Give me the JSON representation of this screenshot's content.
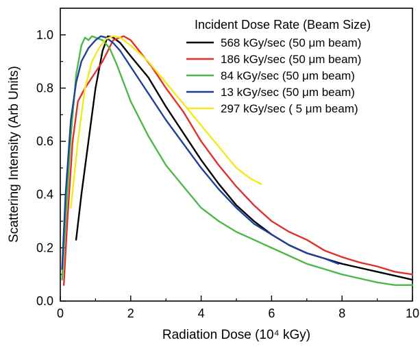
{
  "chart_data": {
    "type": "line",
    "title": "",
    "xlabel": "Radiation Dose (10⁴ kGy)",
    "ylabel": "Scattering Intensity (Arb Units)",
    "xlim": [
      0,
      10
    ],
    "ylim": [
      0,
      1.1
    ],
    "x_ticks": [
      "0",
      "2",
      "4",
      "6",
      "8",
      "10"
    ],
    "y_ticks": [
      "0.0",
      "0.2",
      "0.4",
      "0.6",
      "0.8",
      "1.0"
    ],
    "grid": false,
    "legend_position": "top-right",
    "legend_title": "Incident Dose Rate (Beam Size)",
    "series": [
      {
        "name": "568 kGy/sec (50 μm beam)",
        "color": "#000000",
        "x": [
          0.45,
          0.6,
          0.8,
          1.0,
          1.2,
          1.35,
          1.5,
          1.7,
          2.0,
          2.5,
          3.0,
          3.5,
          4.0,
          4.5,
          5.0,
          5.5,
          6.0,
          6.5,
          7.0,
          7.5,
          8.0,
          8.5,
          9.0,
          9.5,
          10.0
        ],
        "y": [
          0.23,
          0.4,
          0.6,
          0.8,
          0.94,
          0.995,
          0.99,
          0.97,
          0.92,
          0.84,
          0.73,
          0.63,
          0.53,
          0.44,
          0.36,
          0.3,
          0.25,
          0.21,
          0.18,
          0.16,
          0.14,
          0.125,
          0.11,
          0.095,
          0.08
        ]
      },
      {
        "name": "186 kGy/sec (50 μm beam)",
        "color": "#e0302b",
        "x": [
          0.1,
          0.2,
          0.35,
          0.5,
          0.7,
          0.9,
          1.2,
          1.5,
          1.8,
          2.0,
          2.3,
          2.6,
          3.0,
          3.5,
          4.0,
          4.5,
          5.0,
          5.5,
          6.0,
          6.5,
          7.0,
          7.5,
          8.0,
          8.5,
          9.0,
          9.5,
          10.0
        ],
        "y": [
          0.06,
          0.3,
          0.6,
          0.75,
          0.8,
          0.84,
          0.9,
          0.98,
          0.995,
          0.98,
          0.93,
          0.88,
          0.8,
          0.71,
          0.6,
          0.51,
          0.43,
          0.36,
          0.3,
          0.26,
          0.23,
          0.19,
          0.165,
          0.145,
          0.13,
          0.11,
          0.1
        ]
      },
      {
        "name": "84 kGy/sec (50 μm beam)",
        "color": "#4cb848",
        "x": [
          0.05,
          0.15,
          0.3,
          0.45,
          0.6,
          0.7,
          0.8,
          0.9,
          1.0,
          1.2,
          1.4,
          1.6,
          1.8,
          2.0,
          2.5,
          3.0,
          3.5,
          4.0,
          4.5,
          5.0,
          5.5,
          6.0,
          6.5,
          7.0,
          7.5,
          8.0,
          8.5,
          9.0,
          9.5,
          10.0
        ],
        "y": [
          0.08,
          0.3,
          0.62,
          0.85,
          0.96,
          0.99,
          0.98,
          0.995,
          0.99,
          0.98,
          0.95,
          0.89,
          0.82,
          0.75,
          0.62,
          0.51,
          0.43,
          0.35,
          0.3,
          0.26,
          0.23,
          0.2,
          0.17,
          0.14,
          0.12,
          0.1,
          0.085,
          0.07,
          0.06,
          0.06
        ]
      },
      {
        "name": "13 kGy/sec (50 μm beam)",
        "color": "#1f3f99",
        "x": [
          0.05,
          0.15,
          0.3,
          0.45,
          0.6,
          0.8,
          1.0,
          1.15,
          1.3,
          1.5,
          1.7,
          2.0,
          2.5,
          3.0,
          3.5,
          4.0,
          4.5,
          5.0,
          5.5,
          6.0,
          6.5,
          7.0,
          7.5,
          7.9
        ],
        "y": [
          0.12,
          0.4,
          0.68,
          0.82,
          0.9,
          0.95,
          0.98,
          0.995,
          0.99,
          0.97,
          0.94,
          0.88,
          0.78,
          0.68,
          0.59,
          0.5,
          0.42,
          0.35,
          0.29,
          0.25,
          0.21,
          0.18,
          0.16,
          0.14
        ]
      },
      {
        "name": "297 kGy/sec ( 5 μm beam)",
        "color": "#f2ea1e",
        "x": [
          0.3,
          0.5,
          0.7,
          0.9,
          1.1,
          1.3,
          1.5,
          1.7,
          2.0,
          2.5,
          3.0,
          3.5,
          4.0,
          4.5,
          5.0,
          5.4,
          5.7
        ],
        "y": [
          0.35,
          0.6,
          0.8,
          0.9,
          0.95,
          0.985,
          0.995,
          0.99,
          0.96,
          0.9,
          0.82,
          0.74,
          0.66,
          0.58,
          0.5,
          0.46,
          0.44
        ]
      }
    ]
  }
}
